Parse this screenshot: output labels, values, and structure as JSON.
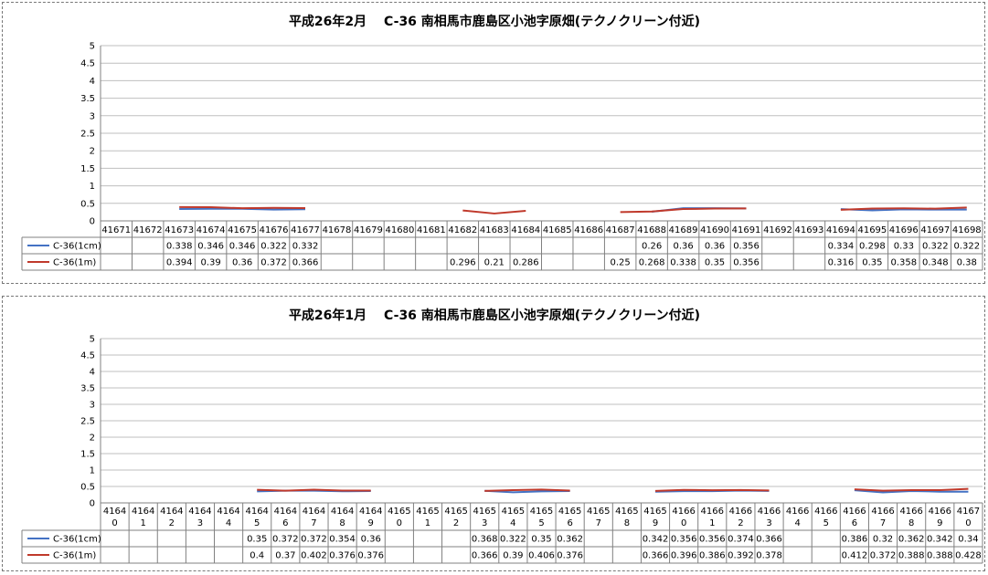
{
  "colors": {
    "cm": "#4472c4",
    "m": "#c0392b",
    "grid": "#bfbfbf",
    "axis": "#808080"
  },
  "chart_data": [
    {
      "type": "line",
      "title": "平成26年2月　 C-36 南相馬市鹿島区小池字原畑(テクノクリーン付近)",
      "ylim": [
        0,
        5
      ],
      "yticks": [
        "0",
        "0.5",
        "1",
        "1.5",
        "2",
        "2.5",
        "3",
        "3.5",
        "4",
        "4.5",
        "5"
      ],
      "grid": true,
      "legend": "table",
      "categories": [
        "41671",
        "41672",
        "41673",
        "41674",
        "41675",
        "41676",
        "41677",
        "41678",
        "41679",
        "41680",
        "41681",
        "41682",
        "41683",
        "41684",
        "41685",
        "41686",
        "41687",
        "41688",
        "41689",
        "41690",
        "41691",
        "41692",
        "41693",
        "41694",
        "41695",
        "41696",
        "41697",
        "41698"
      ],
      "series": [
        {
          "name": "C-36(1cm)",
          "color": "#4472c4",
          "values": [
            null,
            null,
            0.338,
            0.346,
            0.346,
            0.322,
            0.332,
            null,
            null,
            null,
            null,
            null,
            null,
            null,
            null,
            null,
            null,
            0.26,
            0.36,
            0.36,
            0.356,
            null,
            null,
            0.334,
            0.298,
            0.33,
            0.322,
            0.322
          ],
          "labels": [
            "",
            "",
            "0.338",
            "0.346",
            "0.346",
            "0.322",
            "0.332",
            "",
            "",
            "",
            "",
            "",
            "",
            "",
            "",
            "",
            "",
            "0.26",
            "0.36",
            "0.36",
            "0.356",
            "",
            "",
            "0.334",
            "0.298",
            "0.33",
            "0.322",
            "0.322"
          ]
        },
        {
          "name": "C-36(1m)",
          "color": "#c0392b",
          "values": [
            null,
            null,
            0.394,
            0.39,
            0.36,
            0.372,
            0.366,
            null,
            null,
            null,
            null,
            0.296,
            0.21,
            0.286,
            null,
            null,
            0.25,
            0.268,
            0.338,
            0.35,
            0.356,
            null,
            null,
            0.316,
            0.35,
            0.358,
            0.348,
            0.38
          ],
          "labels": [
            "",
            "",
            "0.394",
            "0.39",
            "0.36",
            "0.372",
            "0.366",
            "",
            "",
            "",
            "",
            "0.296",
            "0.21",
            "0.286",
            "",
            "",
            "0.25",
            "0.268",
            "0.338",
            "0.35",
            "0.356",
            "",
            "",
            "0.316",
            "0.35",
            "0.358",
            "0.348",
            "0.38"
          ]
        }
      ]
    },
    {
      "type": "line",
      "title": "平成26年1月　 C-36 南相馬市鹿島区小池字原畑(テクノクリーン付近)",
      "ylim": [
        0,
        5
      ],
      "yticks": [
        "0",
        "0.5",
        "1",
        "1.5",
        "2",
        "2.5",
        "3",
        "3.5",
        "4",
        "4.5",
        "5"
      ],
      "grid": true,
      "legend": "table",
      "categories": [
        "41640",
        "41641",
        "41642",
        "41643",
        "41644",
        "41645",
        "41646",
        "41647",
        "41648",
        "41649",
        "41650",
        "41651",
        "41652",
        "41653",
        "41654",
        "41655",
        "41656",
        "41657",
        "41658",
        "41659",
        "41660",
        "41661",
        "41662",
        "41663",
        "41664",
        "41665",
        "41666",
        "41667",
        "41668",
        "41669",
        "41670"
      ],
      "series": [
        {
          "name": "C-36(1cm)",
          "color": "#4472c4",
          "values": [
            null,
            null,
            null,
            null,
            null,
            0.35,
            0.372,
            0.372,
            0.354,
            0.36,
            null,
            null,
            null,
            0.368,
            0.322,
            0.35,
            0.362,
            null,
            null,
            0.342,
            0.356,
            0.356,
            0.374,
            0.366,
            null,
            null,
            0.386,
            0.32,
            0.362,
            0.342,
            0.34
          ],
          "labels": [
            "",
            "",
            "",
            "",
            "",
            "0.35",
            "0.372",
            "0.372",
            "0.354",
            "0.36",
            "",
            "",
            "",
            "0.368",
            "0.322",
            "0.35",
            "0.362",
            "",
            "",
            "0.342",
            "0.356",
            "0.356",
            "0.374",
            "0.366",
            "",
            "",
            "0.386",
            "0.32",
            "0.362",
            "0.342",
            "0.34"
          ]
        },
        {
          "name": "C-36(1m)",
          "color": "#c0392b",
          "values": [
            null,
            null,
            null,
            null,
            null,
            0.4,
            0.37,
            0.402,
            0.376,
            0.376,
            null,
            null,
            null,
            0.366,
            0.39,
            0.406,
            0.376,
            null,
            null,
            0.366,
            0.396,
            0.386,
            0.392,
            0.378,
            null,
            null,
            0.412,
            0.372,
            0.388,
            0.388,
            0.428
          ],
          "labels": [
            "",
            "",
            "",
            "",
            "",
            "0.4",
            "0.37",
            "0.402",
            "0.376",
            "0.376",
            "",
            "",
            "",
            "0.366",
            "0.39",
            "0.406",
            "0.376",
            "",
            "",
            "0.366",
            "0.396",
            "0.386",
            "0.392",
            "0.378",
            "",
            "",
            "0.412",
            "0.372",
            "0.388",
            "0.388",
            "0.428"
          ]
        }
      ]
    }
  ]
}
